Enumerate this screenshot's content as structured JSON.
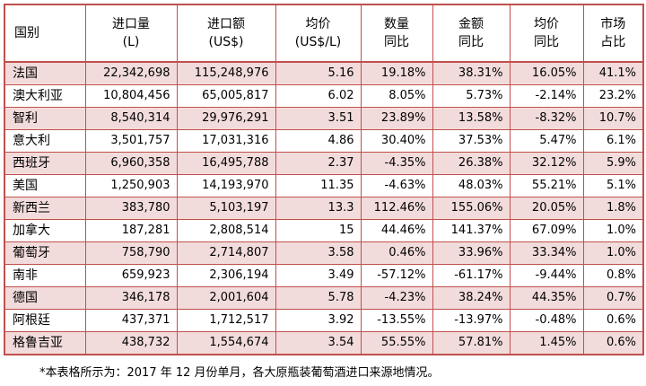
{
  "headers": [
    {
      "line1": "国别",
      "line2": ""
    },
    {
      "line1": "进口量",
      "line2": "(L)"
    },
    {
      "line1": "进口额",
      "line2": "(US$)"
    },
    {
      "line1": "均价",
      "line2": "(US$/L)"
    },
    {
      "line1": "数量",
      "line2": "同比"
    },
    {
      "line1": "金额",
      "line2": "同比"
    },
    {
      "line1": "均价",
      "line2": "同比"
    },
    {
      "line1": "市场",
      "line2": "占比"
    }
  ],
  "rows": [
    [
      "法国",
      "22,342,698",
      "115,248,976",
      "5.16",
      "19.18%",
      "38.31%",
      "16.05%",
      "41.1%"
    ],
    [
      "澳大利亚",
      "10,804,456",
      "65,005,817",
      "6.02",
      "8.05%",
      "5.73%",
      "-2.14%",
      "23.2%"
    ],
    [
      "智利",
      "8,540,314",
      "29,976,291",
      "3.51",
      "23.89%",
      "13.58%",
      "-8.32%",
      "10.7%"
    ],
    [
      "意大利",
      "3,501,757",
      "17,031,316",
      "4.86",
      "30.40%",
      "37.53%",
      "5.47%",
      "6.1%"
    ],
    [
      "西班牙",
      "6,960,358",
      "16,495,788",
      "2.37",
      "-4.35%",
      "26.38%",
      "32.12%",
      "5.9%"
    ],
    [
      "美国",
      "1,250,903",
      "14,193,970",
      "11.35",
      "-4.63%",
      "48.03%",
      "55.21%",
      "5.1%"
    ],
    [
      "新西兰",
      "383,780",
      "5,103,197",
      "13.3",
      "112.46%",
      "155.06%",
      "20.05%",
      "1.8%"
    ],
    [
      "加拿大",
      "187,281",
      "2,808,514",
      "15",
      "44.46%",
      "141.37%",
      "67.09%",
      "1.0%"
    ],
    [
      "葡萄牙",
      "758,790",
      "2,714,807",
      "3.58",
      "0.46%",
      "33.96%",
      "33.34%",
      "1.0%"
    ],
    [
      "南非",
      "659,923",
      "2,306,194",
      "3.49",
      "-57.12%",
      "-61.17%",
      "-9.44%",
      "0.8%"
    ],
    [
      "德国",
      "346,178",
      "2,001,604",
      "5.78",
      "-4.23%",
      "38.24%",
      "44.35%",
      "0.7%"
    ],
    [
      "阿根廷",
      "437,371",
      "1,712,517",
      "3.92",
      "-13.55%",
      "-13.97%",
      "-0.48%",
      "0.6%"
    ],
    [
      "格鲁吉亚",
      "438,732",
      "1,554,674",
      "3.54",
      "55.55%",
      "57.81%",
      "1.45%",
      "0.6%"
    ]
  ],
  "footnote": "*本表格所示为：2017 年 12 月份单月，各大原瓶装葡萄酒进口来源地情况。"
}
